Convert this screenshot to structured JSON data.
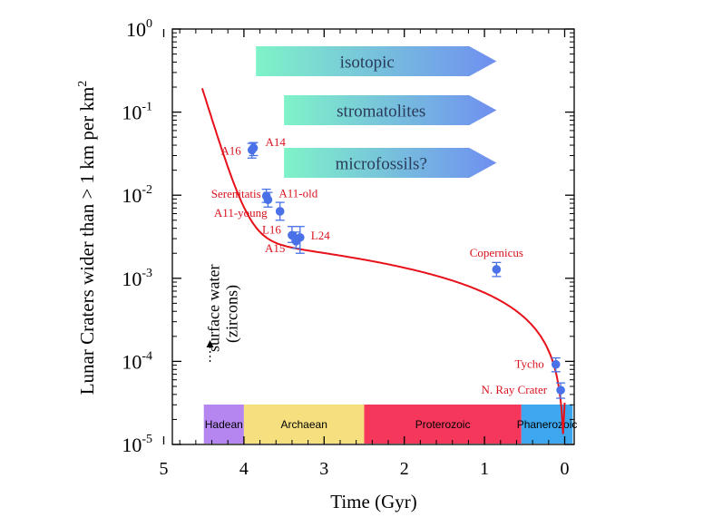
{
  "chart_data": {
    "type": "scatter",
    "xlabel": "Time (Gyr)",
    "ylabel_main": "Lunar Craters wider than > 1 km per km",
    "ylabel_sup": "2",
    "x_reversed": true,
    "xlim": [
      5,
      -0.25
    ],
    "ylim_log10": [
      -5,
      0
    ],
    "x_ticks": [
      {
        "value": 5,
        "label": "5"
      },
      {
        "value": 4,
        "label": "4"
      },
      {
        "value": 3,
        "label": "3"
      },
      {
        "value": 2,
        "label": "2"
      },
      {
        "value": 1,
        "label": "1"
      },
      {
        "value": 0,
        "label": "0"
      }
    ],
    "y_ticks": [
      {
        "exp": 0,
        "base": "10",
        "sup": "0"
      },
      {
        "exp": -1,
        "base": "10",
        "sup": "-1"
      },
      {
        "exp": -2,
        "base": "10",
        "sup": "-2"
      },
      {
        "exp": -3,
        "base": "10",
        "sup": "-3"
      },
      {
        "exp": -4,
        "base": "10",
        "sup": "-4"
      },
      {
        "exp": -5,
        "base": "10",
        "sup": "-5"
      }
    ],
    "points": [
      {
        "label": "A16",
        "x": 3.9,
        "y": 0.035,
        "err_lo": 0.028,
        "err_hi": 0.042
      },
      {
        "label": "A14",
        "x": 3.88,
        "y": 0.037,
        "err_lo": 0.03,
        "err_hi": 0.043
      },
      {
        "label": "Serenitatis",
        "x": 3.72,
        "y": 0.0098,
        "err_lo": 0.0082,
        "err_hi": 0.0118
      },
      {
        "label": "A11-old",
        "x": 3.7,
        "y": 0.0088,
        "err_lo": 0.0072,
        "err_hi": 0.0108
      },
      {
        "label": "A11-young",
        "x": 3.55,
        "y": 0.0064,
        "err_lo": 0.005,
        "err_hi": 0.0082
      },
      {
        "label": "L16",
        "x": 3.4,
        "y": 0.0033,
        "err_lo": 0.0027,
        "err_hi": 0.0042
      },
      {
        "label": "A15",
        "x": 3.35,
        "y": 0.0028,
        "err_lo": 0.0023,
        "err_hi": 0.0036
      },
      {
        "label": "L24",
        "x": 3.3,
        "y": 0.0031,
        "err_lo": 0.002,
        "err_hi": 0.0042
      },
      {
        "label": "Copernicus",
        "x": 0.85,
        "y": 0.00128,
        "err_lo": 0.00105,
        "err_hi": 0.00155
      },
      {
        "label": "Tycho",
        "x": 0.11,
        "y": 9.2e-05,
        "err_lo": 7.5e-05,
        "err_hi": 0.00011
      },
      {
        "label": "N. Ray Crater",
        "x": 0.05,
        "y": 4.5e-05,
        "err_lo": 3.6e-05,
        "err_hi": 5.5e-05
      }
    ],
    "curve_color": "#e8111a",
    "point_color": "#4a71e8",
    "label_color": "#d9131e",
    "arrows": [
      {
        "label": "isotopic",
        "start": 3.85,
        "end": 0.85
      },
      {
        "label": "stromatolites",
        "start": 3.5,
        "end": 0.85
      },
      {
        "label": "microfossils?",
        "start": 3.5,
        "end": 0.85
      }
    ],
    "arrow_gradient": [
      "#7ff3c8",
      "#6f8ff0"
    ],
    "eons": [
      {
        "label": "Hadean",
        "start": 4.5,
        "end": 4.0,
        "color": "#b585f0"
      },
      {
        "label": "Archaean",
        "start": 4.0,
        "end": 2.5,
        "color": "#f6df7f"
      },
      {
        "label": "Proterozoic",
        "start": 2.5,
        "end": 0.54,
        "color": "#f4375a"
      },
      {
        "label": "Phanerozoic",
        "start": 0.54,
        "end": -0.1,
        "color": "#3da7ef"
      }
    ],
    "annotations": [
      {
        "line1": "surface water",
        "line2": "(zircons)",
        "x": 4.4
      }
    ]
  }
}
